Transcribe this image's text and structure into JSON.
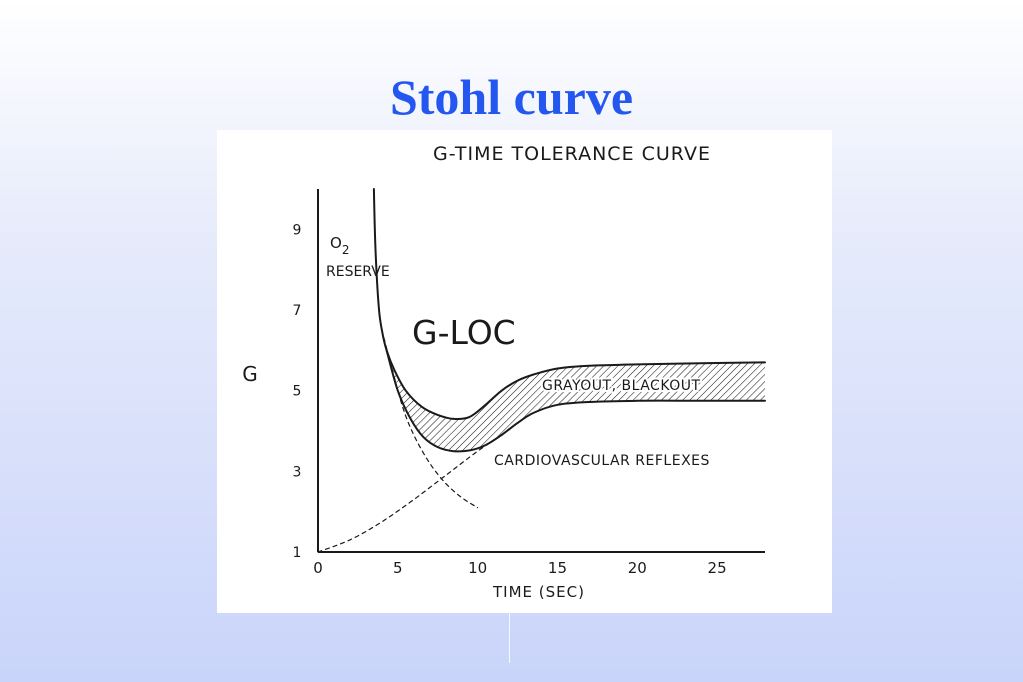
{
  "slide": {
    "title": "Stohl curve"
  },
  "chart_data": {
    "type": "line",
    "title": "G-TIME TOLERANCE CURVE",
    "xlabel": "TIME (SEC)",
    "ylabel": "G",
    "xlim": [
      0,
      28
    ],
    "ylim": [
      1,
      10
    ],
    "xticks": [
      0,
      5,
      10,
      15,
      20,
      25
    ],
    "xtick_labels": [
      "0",
      "5",
      "10",
      "15",
      "20",
      "25"
    ],
    "yticks": [
      1,
      3,
      5,
      7,
      9
    ],
    "ytick_labels": [
      "1",
      "3",
      "5",
      "7",
      "9"
    ],
    "grid": false,
    "legend": "none",
    "series": [
      {
        "style": "solid",
        "x": [
          3.5,
          3.6,
          3.8,
          4.0,
          4.3,
          4.8,
          5.5,
          6.5,
          7.5,
          8.5,
          9.5,
          10.5,
          11.5,
          12.5,
          13.5,
          15,
          17,
          20,
          24,
          28
        ],
        "y": [
          10,
          8.5,
          7.1,
          6.5,
          6.0,
          5.5,
          5.0,
          4.6,
          4.4,
          4.3,
          4.35,
          4.65,
          5.0,
          5.25,
          5.4,
          5.55,
          5.62,
          5.65,
          5.68,
          5.7
        ]
      },
      {
        "style": "solid",
        "x": [
          4.3,
          5.0,
          5.8,
          6.6,
          7.5,
          8.5,
          9.5,
          10.5,
          11.5,
          12.5,
          13.5,
          15,
          17,
          20,
          24,
          28
        ],
        "y": [
          6.0,
          5.0,
          4.3,
          3.85,
          3.6,
          3.5,
          3.52,
          3.65,
          3.9,
          4.2,
          4.45,
          4.65,
          4.72,
          4.75,
          4.75,
          4.75
        ]
      },
      {
        "style": "dashed",
        "x": [
          4.0,
          4.6,
          5.3,
          6.0,
          7.0,
          8.0,
          9.0,
          10.0
        ],
        "y": [
          6.5,
          5.6,
          4.6,
          3.9,
          3.2,
          2.7,
          2.35,
          2.1
        ]
      },
      {
        "style": "dashed",
        "x": [
          0,
          2,
          4,
          6,
          8,
          10,
          11.5,
          12.5
        ],
        "y": [
          1,
          1.3,
          1.75,
          2.3,
          2.9,
          3.5,
          3.9,
          4.2
        ]
      }
    ],
    "annotations": {
      "o2_main": "O",
      "o2_sub": "2",
      "reserve": "RESERVE",
      "gloc": "G-LOC",
      "grayout": "GRAYOUT, BLACKOUT",
      "cardio": "CARDIOVASCULAR REFLEXES"
    },
    "colors": {
      "ink": "#1a1a1a",
      "title": "#2457f0"
    }
  }
}
